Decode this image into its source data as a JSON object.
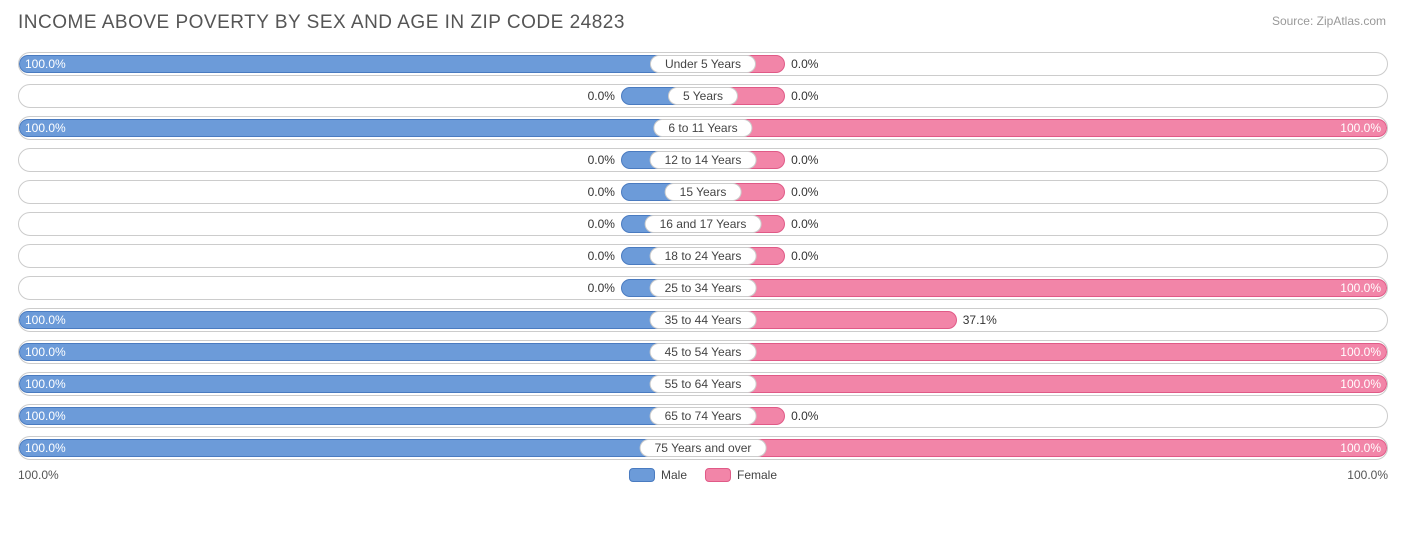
{
  "title": "INCOME ABOVE POVERTY BY SEX AND AGE IN ZIP CODE 24823",
  "source": "Source: ZipAtlas.com",
  "chart": {
    "type": "diverging-bar",
    "male_color": "#6c9bd9",
    "male_border": "#4a7bc0",
    "female_color": "#f285a8",
    "female_border": "#e05a87",
    "row_border": "#cccccc",
    "background": "#ffffff",
    "min_bar_pct": 12,
    "categories": [
      {
        "label": "Under 5 Years",
        "male": 100.0,
        "female": 0.0
      },
      {
        "label": "5 Years",
        "male": 0.0,
        "female": 0.0
      },
      {
        "label": "6 to 11 Years",
        "male": 100.0,
        "female": 100.0
      },
      {
        "label": "12 to 14 Years",
        "male": 0.0,
        "female": 0.0
      },
      {
        "label": "15 Years",
        "male": 0.0,
        "female": 0.0
      },
      {
        "label": "16 and 17 Years",
        "male": 0.0,
        "female": 0.0
      },
      {
        "label": "18 to 24 Years",
        "male": 0.0,
        "female": 0.0
      },
      {
        "label": "25 to 34 Years",
        "male": 0.0,
        "female": 100.0
      },
      {
        "label": "35 to 44 Years",
        "male": 100.0,
        "female": 37.1
      },
      {
        "label": "45 to 54 Years",
        "male": 100.0,
        "female": 100.0
      },
      {
        "label": "55 to 64 Years",
        "male": 100.0,
        "female": 100.0
      },
      {
        "label": "65 to 74 Years",
        "male": 100.0,
        "female": 0.0
      },
      {
        "label": "75 Years and over",
        "male": 100.0,
        "female": 100.0
      }
    ],
    "axis": {
      "left": "100.0%",
      "right": "100.0%"
    },
    "legend": {
      "male": "Male",
      "female": "Female"
    }
  }
}
